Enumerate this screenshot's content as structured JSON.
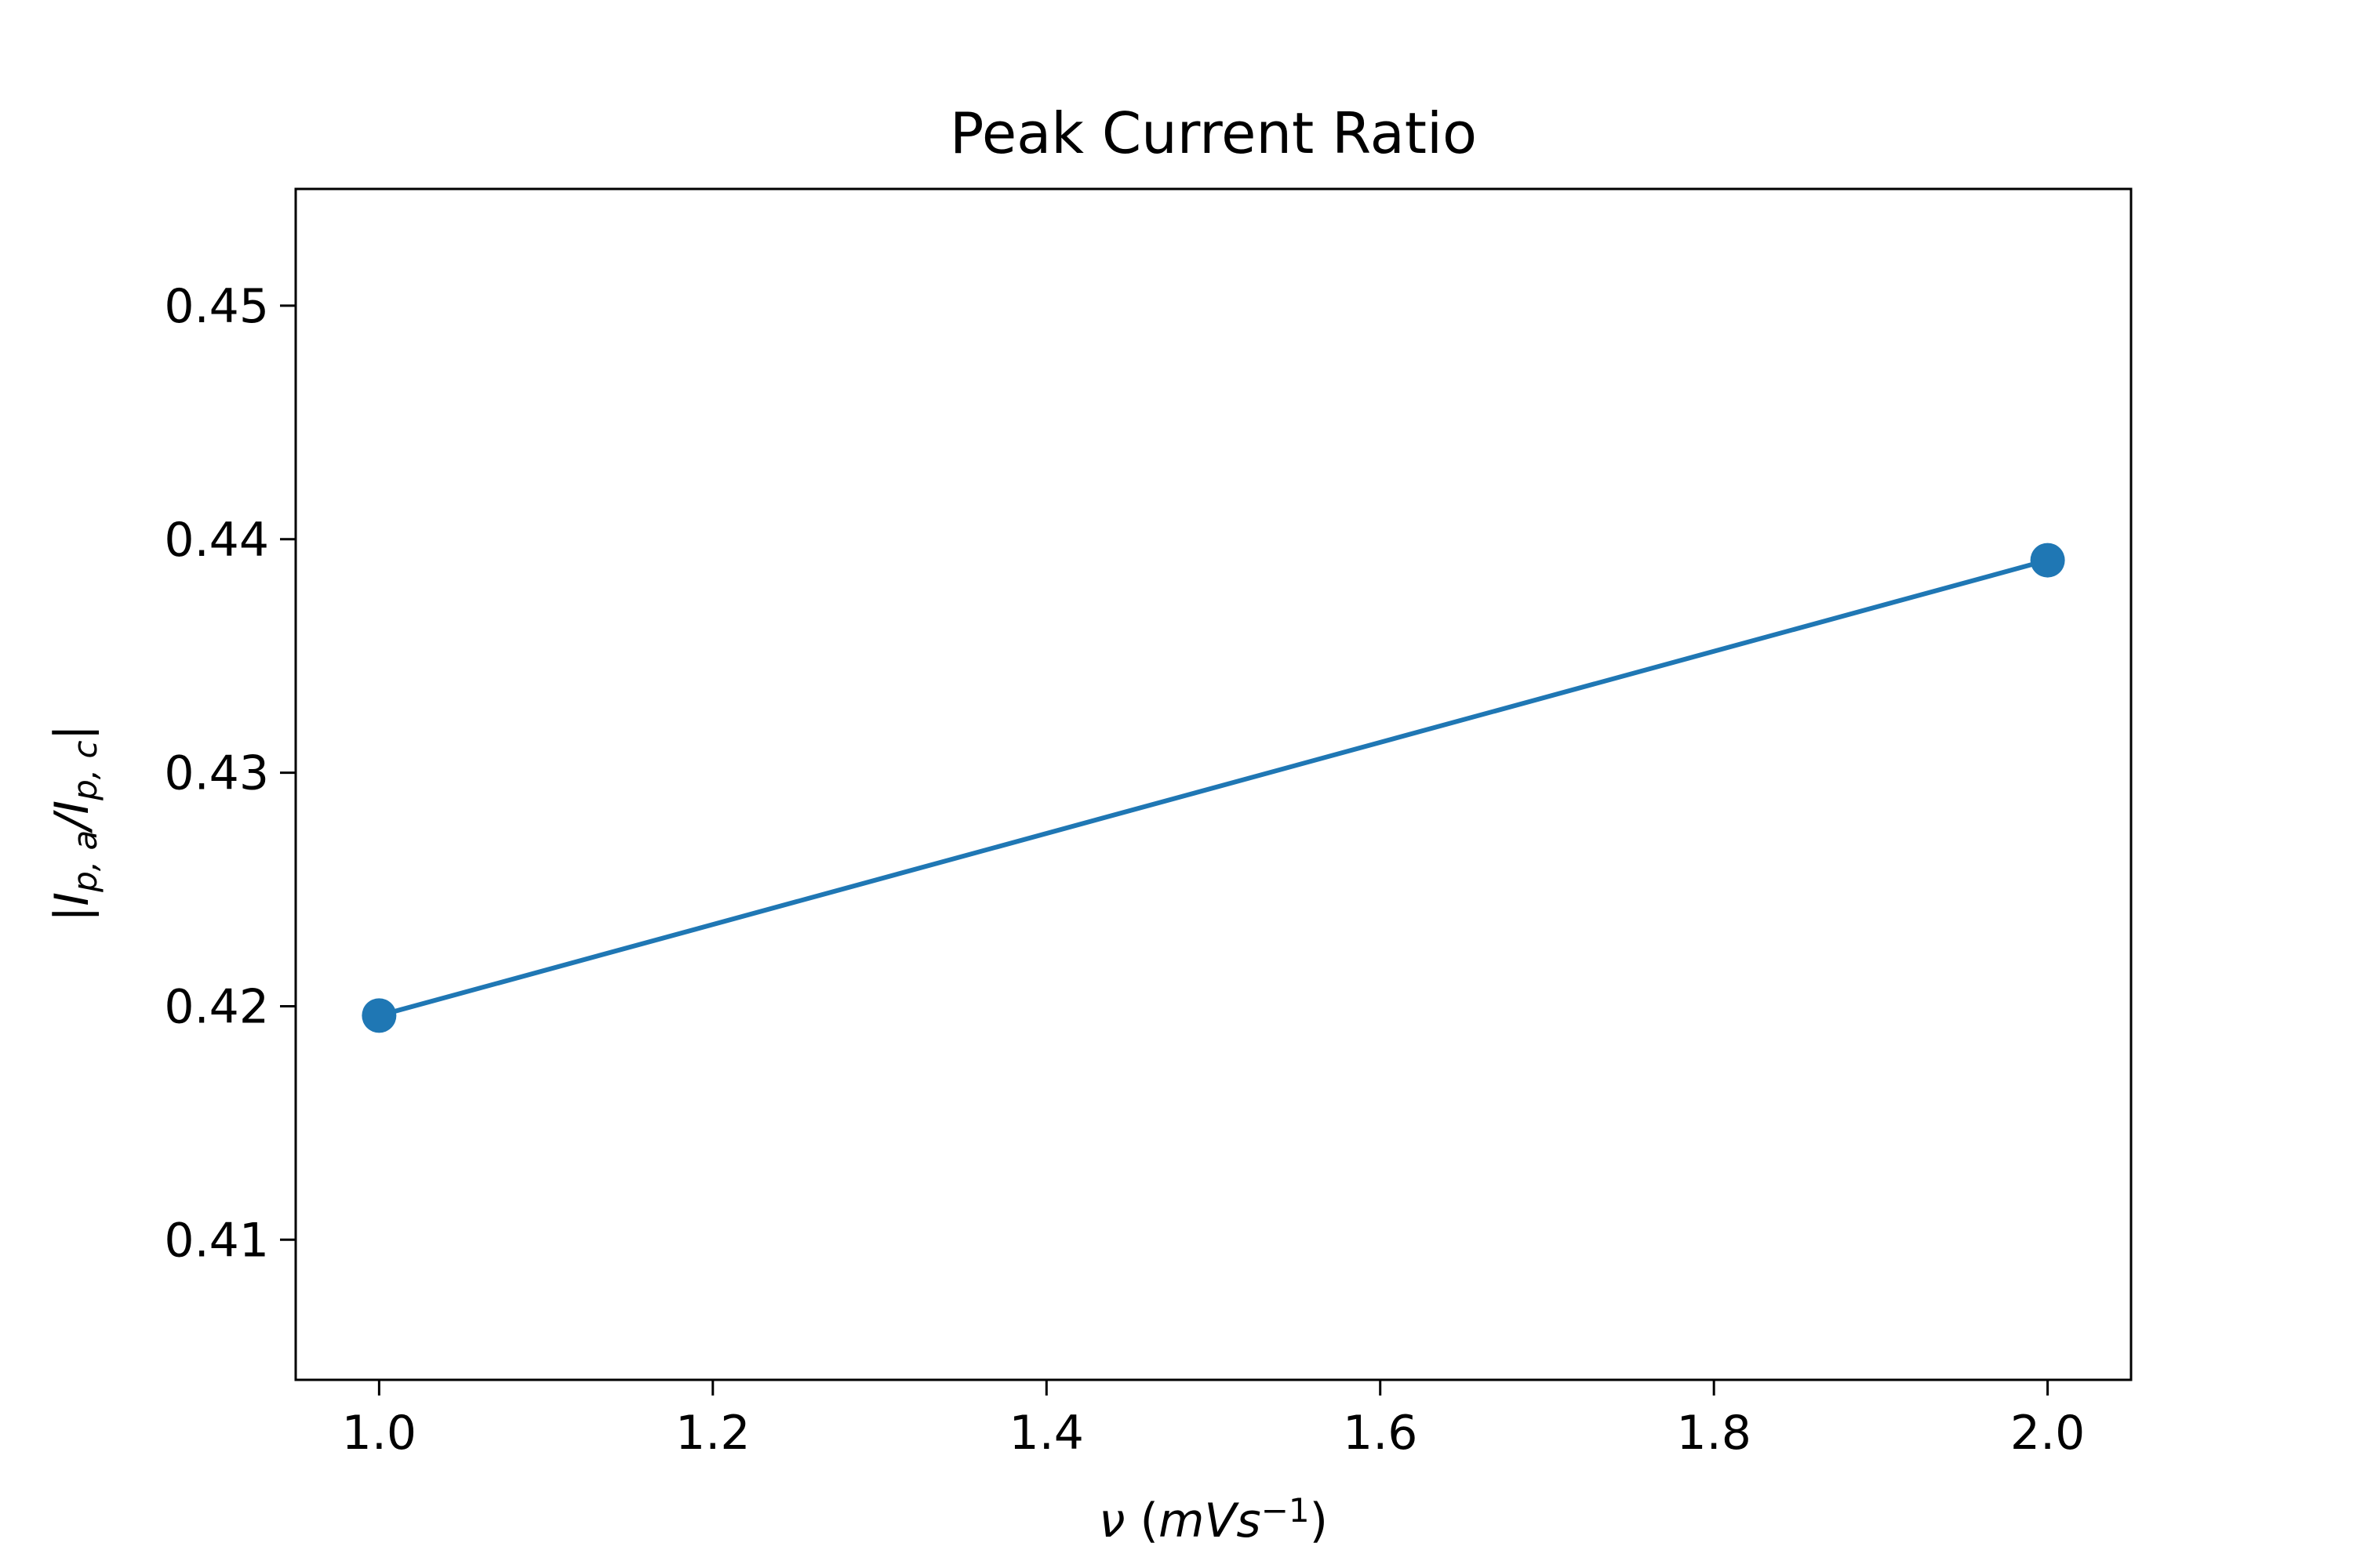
{
  "chart_data": {
    "type": "line",
    "title": "Peak Current Ratio",
    "xlabel": {
      "parts": [
        {
          "text": "ν",
          "style": "italic"
        },
        {
          "text": "  (",
          "style": "normal"
        },
        {
          "text": "mVs",
          "style": "italic"
        },
        {
          "text": "−1",
          "style": "sup"
        },
        {
          "text": ")",
          "style": "normal"
        }
      ]
    },
    "ylabel": {
      "parts": [
        {
          "text": "|",
          "style": "normal"
        },
        {
          "text": "I",
          "style": "italic"
        },
        {
          "text": "p, a",
          "style": "sub"
        },
        {
          "text": "/",
          "style": "italic"
        },
        {
          "text": "I",
          "style": "italic"
        },
        {
          "text": "p, c",
          "style": "sub"
        },
        {
          "text": "|",
          "style": "normal"
        }
      ]
    },
    "xlim": [
      0.95,
      2.05
    ],
    "ylim": [
      0.404,
      0.455
    ],
    "xticks": [
      1.0,
      1.2,
      1.4,
      1.6,
      1.8,
      2.0
    ],
    "xtick_labels": [
      "1.0",
      "1.2",
      "1.4",
      "1.6",
      "1.8",
      "2.0"
    ],
    "yticks": [
      0.41,
      0.42,
      0.43,
      0.44,
      0.45
    ],
    "ytick_labels": [
      "0.41",
      "0.42",
      "0.43",
      "0.44",
      "0.45"
    ],
    "grid": false,
    "series": [
      {
        "x": [
          1.0,
          2.0
        ],
        "y": [
          0.4196,
          0.4391
        ],
        "color": "#1f77b4",
        "marker": "circle"
      }
    ]
  }
}
